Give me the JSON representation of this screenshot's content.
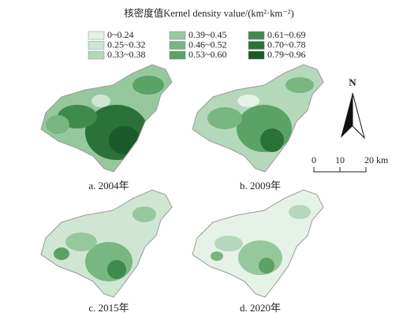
{
  "legend": {
    "title": "核密度值Kernel density value/(km²·km⁻²)",
    "items": [
      {
        "label": "0~0.24",
        "color": "#e6f2e8"
      },
      {
        "label": "0.25~0.32",
        "color": "#cfe6d2"
      },
      {
        "label": "0.33~0.38",
        "color": "#b4d8b9"
      },
      {
        "label": "0.39~0.45",
        "color": "#96c89d"
      },
      {
        "label": "0.46~0.52",
        "color": "#78b682"
      },
      {
        "label": "0.53~0.60",
        "color": "#5aa266"
      },
      {
        "label": "0.61~0.69",
        "color": "#3f8b4d"
      },
      {
        "label": "0.70~0.78",
        "color": "#2b723a"
      },
      {
        "label": "0.79~0.96",
        "color": "#1a5a2a"
      }
    ]
  },
  "panels": [
    {
      "caption": "a. 2004年"
    },
    {
      "caption": "b. 2009年"
    },
    {
      "caption": "c. 2015年"
    },
    {
      "caption": "d. 2020年"
    }
  ],
  "north": "N",
  "scale": {
    "labels": [
      "0",
      "10",
      "20 km"
    ]
  }
}
